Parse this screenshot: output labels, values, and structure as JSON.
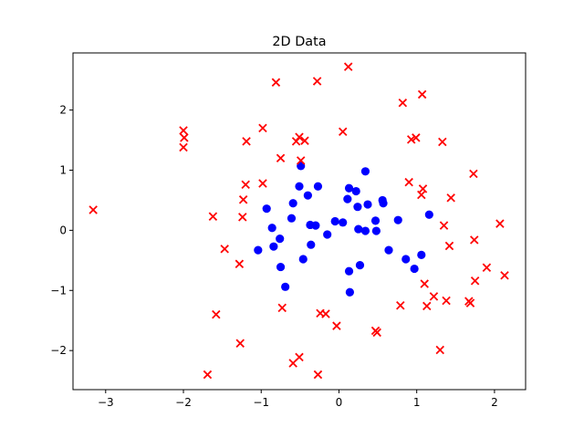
{
  "chart_data": {
    "type": "scatter",
    "title": "2D Data",
    "xlabel": "",
    "ylabel": "",
    "xlim": [
      -3.42,
      2.4
    ],
    "ylim": [
      -2.65,
      2.95
    ],
    "x_ticks": [
      -3,
      -2,
      -1,
      0,
      1,
      2
    ],
    "y_ticks": [
      -2,
      -1,
      0,
      1,
      2
    ],
    "x_tick_labels": [
      "−3",
      "−2",
      "−1",
      "0",
      "1",
      "2"
    ],
    "y_tick_labels": [
      "−2",
      "−1",
      "0",
      "1",
      "2"
    ],
    "grid": false,
    "legend": "none",
    "series": [
      {
        "marker": "circle",
        "color": "#0000ff",
        "points": [
          [
            -1.04,
            -0.33
          ],
          [
            -0.93,
            0.36
          ],
          [
            -0.86,
            0.04
          ],
          [
            -0.84,
            -0.27
          ],
          [
            -0.76,
            -0.14
          ],
          [
            -0.75,
            -0.61
          ],
          [
            -0.69,
            -0.94
          ],
          [
            -0.61,
            0.2
          ],
          [
            -0.59,
            0.45
          ],
          [
            -0.51,
            0.73
          ],
          [
            -0.49,
            1.07
          ],
          [
            -0.46,
            -0.48
          ],
          [
            -0.4,
            0.58
          ],
          [
            -0.37,
            0.09
          ],
          [
            -0.36,
            -0.24
          ],
          [
            -0.3,
            0.08
          ],
          [
            -0.27,
            0.73
          ],
          [
            -0.15,
            -0.07
          ],
          [
            -0.05,
            0.15
          ],
          [
            0.05,
            0.13
          ],
          [
            0.11,
            0.52
          ],
          [
            0.13,
            0.7
          ],
          [
            0.13,
            -0.68
          ],
          [
            0.14,
            -1.03
          ],
          [
            0.22,
            0.65
          ],
          [
            0.24,
            0.39
          ],
          [
            0.25,
            0.02
          ],
          [
            0.27,
            -0.58
          ],
          [
            0.34,
            0.98
          ],
          [
            0.34,
            -0.01
          ],
          [
            0.37,
            0.43
          ],
          [
            0.47,
            0.16
          ],
          [
            0.48,
            -0.01
          ],
          [
            0.56,
            0.5
          ],
          [
            0.57,
            0.45
          ],
          [
            0.64,
            -0.33
          ],
          [
            0.76,
            0.17
          ],
          [
            0.86,
            -0.48
          ],
          [
            0.97,
            -0.64
          ],
          [
            1.06,
            -0.41
          ],
          [
            1.16,
            0.26
          ]
        ]
      },
      {
        "marker": "x",
        "color": "#ff0000",
        "points": [
          [
            -3.16,
            0.34
          ],
          [
            -2.0,
            1.66
          ],
          [
            -1.99,
            1.54
          ],
          [
            -2.0,
            1.38
          ],
          [
            -1.62,
            0.23
          ],
          [
            -1.58,
            -1.4
          ],
          [
            -1.47,
            -0.31
          ],
          [
            -1.27,
            -1.88
          ],
          [
            -1.28,
            -0.56
          ],
          [
            -1.24,
            0.22
          ],
          [
            -1.23,
            0.51
          ],
          [
            -1.2,
            0.76
          ],
          [
            -1.19,
            1.48
          ],
          [
            -1.69,
            -2.4
          ],
          [
            -0.98,
            1.7
          ],
          [
            -0.98,
            0.78
          ],
          [
            -0.81,
            2.46
          ],
          [
            -0.75,
            1.2
          ],
          [
            -0.73,
            -1.29
          ],
          [
            -0.59,
            -2.21
          ],
          [
            -0.55,
            1.48
          ],
          [
            -0.51,
            1.55
          ],
          [
            -0.49,
            1.16
          ],
          [
            -0.44,
            1.49
          ],
          [
            -0.51,
            -2.11
          ],
          [
            -0.28,
            2.48
          ],
          [
            -0.27,
            -2.4
          ],
          [
            -0.24,
            -1.38
          ],
          [
            -0.17,
            -1.39
          ],
          [
            -0.03,
            -1.59
          ],
          [
            0.05,
            1.64
          ],
          [
            0.12,
            2.72
          ],
          [
            0.47,
            -1.67
          ],
          [
            0.49,
            -1.7
          ],
          [
            0.79,
            -1.25
          ],
          [
            0.82,
            2.12
          ],
          [
            0.9,
            0.8
          ],
          [
            0.93,
            1.51
          ],
          [
            0.99,
            1.54
          ],
          [
            1.06,
            0.59
          ],
          [
            1.08,
            0.69
          ],
          [
            1.07,
            2.26
          ],
          [
            1.1,
            -0.89
          ],
          [
            1.13,
            -1.26
          ],
          [
            1.22,
            -1.1
          ],
          [
            1.3,
            -1.99
          ],
          [
            1.33,
            1.47
          ],
          [
            1.35,
            0.08
          ],
          [
            1.38,
            -1.17
          ],
          [
            1.42,
            -0.26
          ],
          [
            1.44,
            0.54
          ],
          [
            1.67,
            -1.18
          ],
          [
            1.69,
            -1.21
          ],
          [
            1.73,
            0.94
          ],
          [
            1.74,
            -0.16
          ],
          [
            1.75,
            -0.84
          ],
          [
            1.9,
            -0.62
          ],
          [
            2.07,
            0.11
          ],
          [
            2.13,
            -0.75
          ]
        ]
      }
    ]
  }
}
